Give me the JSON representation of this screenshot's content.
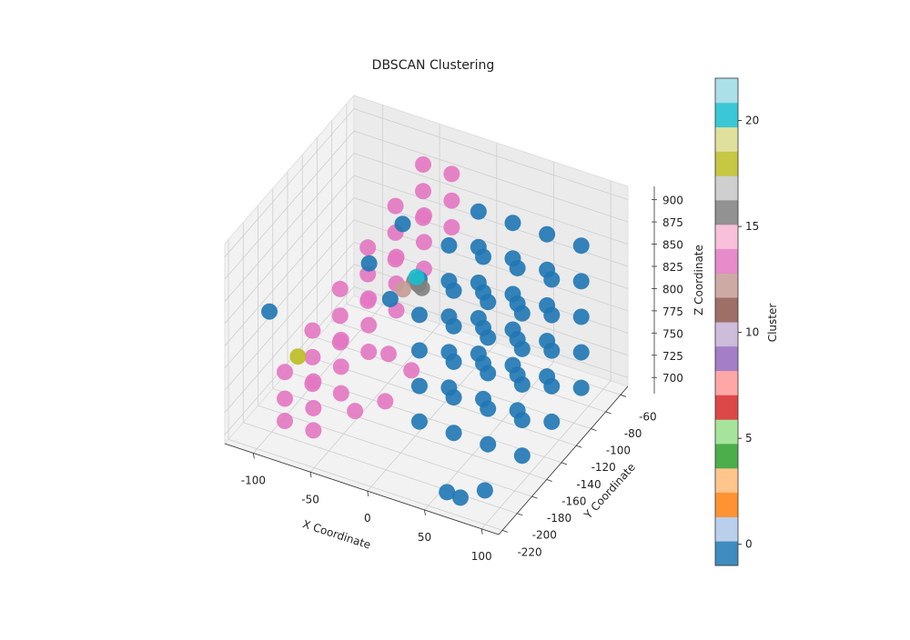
{
  "chart_data": {
    "type": "scatter3d",
    "title": "DBSCAN Clustering",
    "xlabel": "X Coordinate",
    "ylabel": "Y Coordinate",
    "zlabel": "Z Coordinate",
    "xlim": [
      -125,
      115
    ],
    "ylim": [
      -225,
      -50
    ],
    "zlim": [
      690,
      915
    ],
    "xticks": [
      -100,
      -50,
      0,
      50,
      100
    ],
    "yticks": [
      -220,
      -200,
      -180,
      -160,
      -140,
      -120,
      -100,
      -80,
      -60
    ],
    "zticks": [
      700,
      725,
      750,
      775,
      800,
      825,
      850,
      875,
      900
    ],
    "grid": true,
    "series": [
      {
        "cluster": 13,
        "x": [
          -95,
          -95,
          -95,
          -70,
          -70,
          -70,
          -85,
          -85,
          -85,
          -60,
          -60,
          -60,
          -75,
          -75,
          -75,
          -50,
          -50,
          -50,
          -65,
          -65,
          -65,
          -40,
          -40,
          -40,
          -55,
          -55,
          -55,
          -30,
          -30,
          -30,
          -45,
          -45,
          -45,
          -20,
          -20,
          -20,
          -40,
          -20,
          -30,
          -10
        ],
        "y": [
          -190,
          -190,
          -190,
          -190,
          -190,
          -190,
          -168,
          -168,
          -168,
          -168,
          -168,
          -168,
          -146,
          -146,
          -146,
          -146,
          -146,
          -146,
          -124,
          -124,
          -124,
          -124,
          -124,
          -124,
          -102,
          -102,
          -102,
          -102,
          -102,
          -102,
          -80,
          -80,
          -80,
          -80,
          -80,
          -80,
          -180,
          -170,
          -150,
          -150
        ],
        "z": [
          695,
          720,
          750,
          695,
          720,
          750,
          720,
          750,
          780,
          720,
          750,
          780,
          750,
          780,
          810,
          750,
          780,
          810,
          780,
          810,
          840,
          780,
          810,
          840,
          810,
          840,
          870,
          810,
          840,
          870,
          840,
          870,
          900,
          840,
          870,
          900,
          720,
          730,
          760,
          750
        ]
      },
      {
        "cluster": 0,
        "x": [
          10,
          10,
          10,
          10,
          10,
          10,
          10,
          10,
          10,
          10,
          10,
          10,
          10,
          10,
          10,
          40,
          40,
          40,
          40,
          40,
          40,
          40,
          40,
          40,
          40,
          40,
          40,
          40,
          40,
          40,
          70,
          70,
          70,
          70,
          70,
          70,
          70,
          70,
          70,
          70,
          70,
          70,
          70,
          70,
          70,
          100,
          100,
          100,
          100,
          100,
          100,
          100,
          100,
          100,
          100,
          100,
          100,
          100,
          100,
          100,
          60,
          75,
          90
        ],
        "y": [
          -90,
          -90,
          -90,
          -90,
          -90,
          -130,
          -130,
          -130,
          -130,
          -130,
          -170,
          -170,
          -170,
          -170,
          -170,
          -90,
          -90,
          -90,
          -90,
          -90,
          -130,
          -130,
          -130,
          -130,
          -130,
          -170,
          -170,
          -170,
          -170,
          -170,
          -90,
          -90,
          -90,
          -90,
          -90,
          -130,
          -130,
          -130,
          -130,
          -130,
          -170,
          -170,
          -170,
          -170,
          -170,
          -90,
          -90,
          -90,
          -90,
          -90,
          -130,
          -130,
          -130,
          -130,
          -130,
          -170,
          -170,
          -170,
          -170,
          -170,
          -210,
          -215,
          -205
        ],
        "z": [
          720,
          760,
          800,
          840,
          880,
          720,
          760,
          800,
          840,
          880,
          720,
          760,
          800,
          840,
          880,
          720,
          760,
          800,
          840,
          880,
          720,
          760,
          800,
          840,
          880,
          720,
          760,
          800,
          840,
          880,
          720,
          760,
          800,
          840,
          880,
          720,
          760,
          800,
          840,
          880,
          720,
          760,
          800,
          840,
          880,
          720,
          760,
          800,
          840,
          880,
          720,
          760,
          800,
          840,
          880,
          720,
          760,
          800,
          840,
          880,
          700,
          705,
          710
        ]
      },
      {
        "cluster": -1,
        "x": [
          -115,
          -60,
          -50,
          -35
        ],
        "y": [
          -180,
          -130,
          -100,
          -140
        ],
        "z": [
          800,
          830,
          850,
          810
        ]
      },
      {
        "cluster": 16,
        "x": [
          -30,
          -32,
          -28
        ],
        "y": [
          -110,
          -112,
          -108
        ],
        "z": [
          800,
          805,
          795
        ]
      },
      {
        "cluster": 18,
        "x": [
          -90
        ],
        "y": [
          -180
        ],
        "z": [
          760
        ]
      },
      {
        "cluster": 12,
        "x": [
          -40
        ],
        "y": [
          -115
        ],
        "z": [
          795
        ]
      },
      {
        "cluster": 20,
        "x": [
          -25
        ],
        "y": [
          -120
        ],
        "z": [
          820
        ]
      }
    ],
    "colorbar": {
      "label": "Cluster",
      "lim": [
        -1,
        22
      ],
      "ticks": [
        0,
        5,
        10,
        15,
        20
      ],
      "colors": [
        "#1f77b4",
        "#aec7e8",
        "#ff7f0e",
        "#ffbb78",
        "#2ca02c",
        "#98df8a",
        "#d62728",
        "#ff9896",
        "#9467bd",
        "#c5b0d5",
        "#8c564b",
        "#c49c94",
        "#e377c2",
        "#f7b6d2",
        "#7f7f7f",
        "#c7c7c7",
        "#bcbd22",
        "#dbdb8d",
        "#17becf",
        "#9edae5"
      ]
    }
  }
}
